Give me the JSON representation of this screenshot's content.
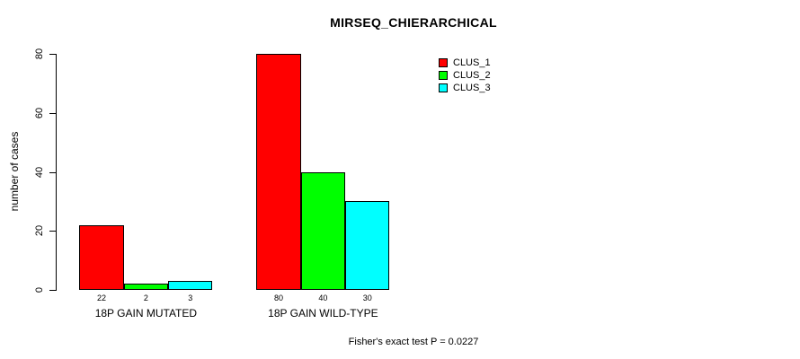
{
  "chart_data": {
    "type": "bar",
    "title": "MIRSEQ_CHIERARCHICAL",
    "ylabel": "number of cases",
    "xlabel": "",
    "ylim": [
      0,
      80
    ],
    "yticks": [
      0,
      20,
      40,
      60,
      80
    ],
    "categories": [
      "18P GAIN MUTATED",
      "18P GAIN WILD-TYPE"
    ],
    "series": [
      {
        "name": "CLUS_1",
        "color": "#ff0000",
        "values": [
          22,
          80
        ]
      },
      {
        "name": "CLUS_2",
        "color": "#00ff00",
        "values": [
          2,
          40
        ]
      },
      {
        "name": "CLUS_3",
        "color": "#00ffff",
        "values": [
          3,
          30
        ]
      }
    ],
    "bar_value_labels": [
      [
        "22",
        "2",
        "3"
      ],
      [
        "80",
        "40",
        "30"
      ]
    ],
    "legend": {
      "position": "top-right",
      "entries": [
        {
          "label": "CLUS_1",
          "color": "#ff0000"
        },
        {
          "label": "CLUS_2",
          "color": "#00ff00"
        },
        {
          "label": "CLUS_3",
          "color": "#00ffff"
        }
      ]
    },
    "grid": false,
    "background": "#ffffff",
    "axis_color": "#000000",
    "annotation": "Fisher's exact test P = 0.0227"
  }
}
